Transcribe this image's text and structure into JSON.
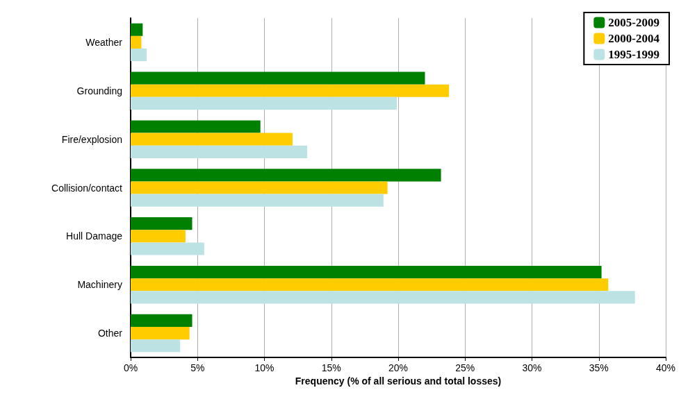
{
  "chart_data": {
    "type": "bar",
    "orientation": "horizontal",
    "xlabel": "Frequency (% of all serious and total losses)",
    "categories": [
      "Weather",
      "Grounding",
      "Fire/explosion",
      "Collision/contact",
      "Hull Damage",
      "Machinery",
      "Other"
    ],
    "series": [
      {
        "name": "2005-2009",
        "color": "#008000",
        "values": [
          0.9,
          22.0,
          9.7,
          23.2,
          4.6,
          35.2,
          4.6
        ]
      },
      {
        "name": "2000-2004",
        "color": "#ffcc00",
        "values": [
          0.8,
          23.8,
          12.1,
          19.2,
          4.1,
          35.7,
          4.4
        ]
      },
      {
        "name": "1995-1999",
        "color": "#bde2e4",
        "values": [
          1.2,
          19.9,
          13.2,
          18.9,
          5.5,
          37.7,
          3.7
        ]
      }
    ],
    "xlim": [
      0,
      40
    ],
    "xticks": [
      {
        "value": 0,
        "label": "0%"
      },
      {
        "value": 5,
        "label": "5%"
      },
      {
        "value": 10,
        "label": "10%"
      },
      {
        "value": 15,
        "label": "15%"
      },
      {
        "value": 20,
        "label": "20%"
      },
      {
        "value": 25,
        "label": "25%"
      },
      {
        "value": 30,
        "label": "30%"
      },
      {
        "value": 35,
        "label": "35%"
      },
      {
        "value": 40,
        "label": "40%"
      }
    ],
    "grid": "x",
    "legend": "top right"
  }
}
